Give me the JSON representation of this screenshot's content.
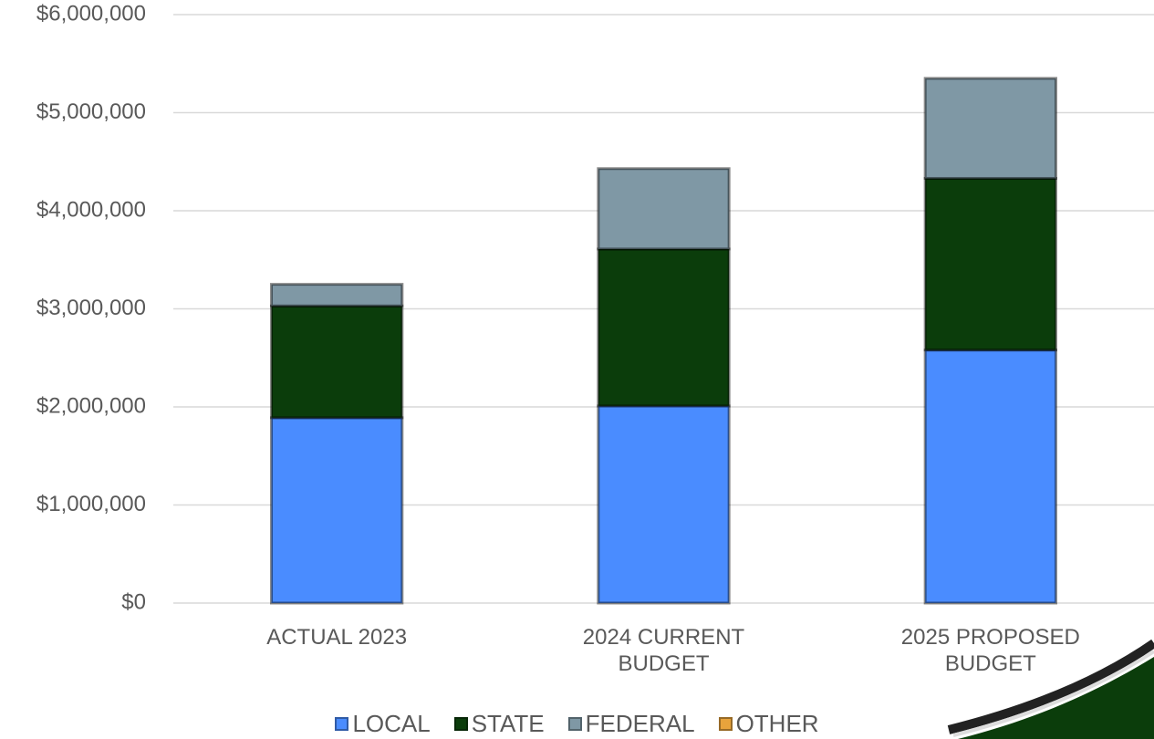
{
  "chart_data": {
    "type": "stacked_bar",
    "categories": [
      "ACTUAL 2023",
      "2024 CURRENT BUDGET",
      "2025 PROPOSED BUDGET"
    ],
    "series": [
      {
        "name": "LOCAL",
        "color": "#4a8cff",
        "values": [
          1890000,
          2010000,
          2580000
        ]
      },
      {
        "name": "STATE",
        "color": "#0b3d0b",
        "values": [
          1140000,
          1600000,
          1750000
        ]
      },
      {
        "name": "FEDERAL",
        "color": "#7f98a5",
        "values": [
          220000,
          820000,
          1020000
        ]
      },
      {
        "name": "OTHER",
        "color": "#e8a33c",
        "values": [
          0,
          0,
          0
        ]
      }
    ],
    "ylim": [
      0,
      6000000
    ],
    "yticks": [
      {
        "value": 0,
        "label": "$0"
      },
      {
        "value": 1000000,
        "label": "$1,000,000"
      },
      {
        "value": 2000000,
        "label": "$2,000,000"
      },
      {
        "value": 3000000,
        "label": "$3,000,000"
      },
      {
        "value": 4000000,
        "label": "$4,000,000"
      },
      {
        "value": 5000000,
        "label": "$5,000,000"
      },
      {
        "value": 6000000,
        "label": "$6,000,000"
      }
    ],
    "grid": true
  }
}
